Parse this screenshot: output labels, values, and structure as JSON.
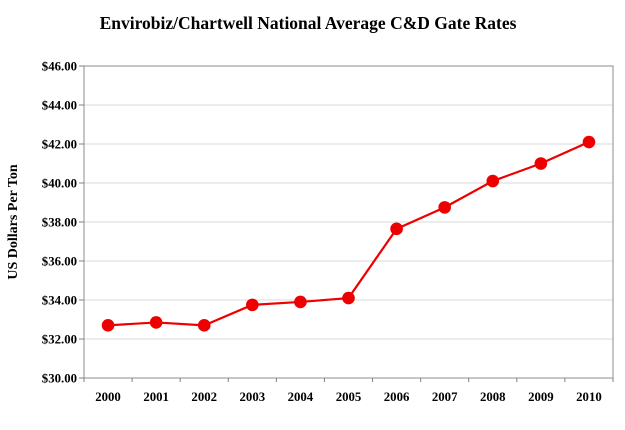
{
  "chart_data": {
    "type": "line",
    "title": "Envirobiz/Chartwell National Average C&D Gate Rates",
    "xlabel": "",
    "ylabel": "US Dollars Per Ton",
    "categories": [
      "2000",
      "2001",
      "2002",
      "2003",
      "2004",
      "2005",
      "2006",
      "2007",
      "2008",
      "2009",
      "2010"
    ],
    "series": [
      {
        "values": [
          32.7,
          32.85,
          32.7,
          33.75,
          33.9,
          34.1,
          37.65,
          38.75,
          40.1,
          41.0,
          42.1
        ]
      }
    ],
    "ylim": [
      30,
      46
    ],
    "yticks": [
      {
        "value": 30,
        "label": "$30.00"
      },
      {
        "value": 32,
        "label": "$32.00"
      },
      {
        "value": 34,
        "label": "$34.00"
      },
      {
        "value": 36,
        "label": "$36.00"
      },
      {
        "value": 38,
        "label": "$38.00"
      },
      {
        "value": 40,
        "label": "$40.00"
      },
      {
        "value": 42,
        "label": "$42.00"
      },
      {
        "value": 44,
        "label": "$44.00"
      },
      {
        "value": 46,
        "label": "$46.00"
      }
    ],
    "grid": "horizontal",
    "legend": "none",
    "colors": {
      "line": "#EE0000",
      "marker": "#EE0000",
      "gridline": "#DADADA",
      "axis_border": "#A0A0A0",
      "tick": "#808080",
      "text": "#000000",
      "background": "#FFFFFF"
    }
  }
}
